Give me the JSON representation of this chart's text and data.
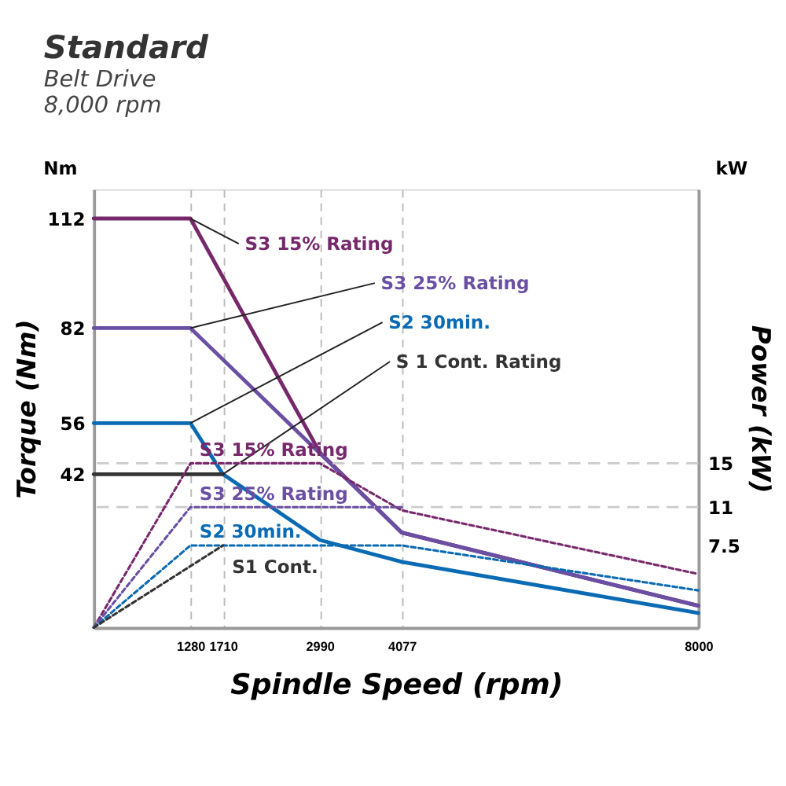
{
  "chart_data": {
    "type": "line",
    "title": "Standard",
    "subtitle": "Belt Drive\n8,000 rpm",
    "xlabel": "Spindle Speed (rpm)",
    "ylabel": "Torque (Nm)",
    "y2label": "Power (kW)",
    "annotations": [
      "Nm",
      "kW"
    ],
    "xlim": [
      0,
      8000
    ],
    "xticks": [
      {
        "value": 1280,
        "label": "1280"
      },
      {
        "value": 1710,
        "label": "1710"
      },
      {
        "value": 2990,
        "label": "2990"
      },
      {
        "value": 4077,
        "label": "4077"
      },
      {
        "value": 8000,
        "label": "8000"
      }
    ],
    "ylim": [
      0,
      120
    ],
    "yticks": [
      42,
      56,
      82,
      112
    ],
    "y2lim": [
      0,
      40
    ],
    "y2ticks": [
      {
        "value": 7.5,
        "label": "7.5"
      },
      11,
      15
    ],
    "grid": "x",
    "ref_lines": [
      {
        "axis": "y2",
        "value": 15,
        "color": "#cccccc",
        "line_style": "dashed"
      },
      {
        "axis": "y2",
        "value": 11,
        "color": "#cccccc",
        "line_style": "dashed"
      }
    ],
    "series": [
      {
        "name": "S3 15% Rating",
        "color": "#76286b",
        "line_style": "solid",
        "x": [
          0,
          1280,
          2990,
          4077,
          8000
        ],
        "values": [
          112,
          112,
          48,
          26,
          6
        ]
      },
      {
        "name": "S3 25% Rating",
        "color": "#6a4fa3",
        "line_style": "solid",
        "x": [
          0,
          1280,
          4077,
          8000
        ],
        "values": [
          82,
          82,
          26,
          6
        ]
      },
      {
        "name": "S2 30min.",
        "color": "#0a6ab3",
        "line_style": "solid",
        "x": [
          0,
          1280,
          1710,
          2990,
          4077,
          8000
        ],
        "values": [
          56,
          56,
          42,
          24,
          18,
          4
        ]
      },
      {
        "name": "S 1 Cont. Rating",
        "color": "#333333",
        "line_style": "solid",
        "x": [
          0,
          1710
        ],
        "values": [
          42,
          42
        ]
      },
      {
        "name": "S3 15% Rating",
        "color": "#76286b",
        "line_style": "dotted",
        "axis": "y2",
        "x": [
          0,
          1280,
          2990,
          4077,
          8000
        ],
        "values": [
          0,
          15,
          15,
          10.7,
          4.9
        ]
      },
      {
        "name": "S3 25% Rating",
        "color": "#6a4fa3",
        "line_style": "dotted",
        "axis": "y2",
        "x": [
          0,
          1280,
          4077
        ],
        "values": [
          0,
          11,
          11
        ]
      },
      {
        "name": "S2 30min.",
        "color": "#0a6ab3",
        "line_style": "dotted",
        "axis": "y2",
        "x": [
          0,
          1280,
          4077,
          8000
        ],
        "values": [
          0,
          7.5,
          7.5,
          3.4
        ]
      },
      {
        "name": "S1 Cont.",
        "color": "#333333",
        "line_style": "dotted",
        "axis": "y2",
        "x": [
          0,
          1710
        ],
        "values": [
          0,
          7.5
        ]
      }
    ]
  }
}
